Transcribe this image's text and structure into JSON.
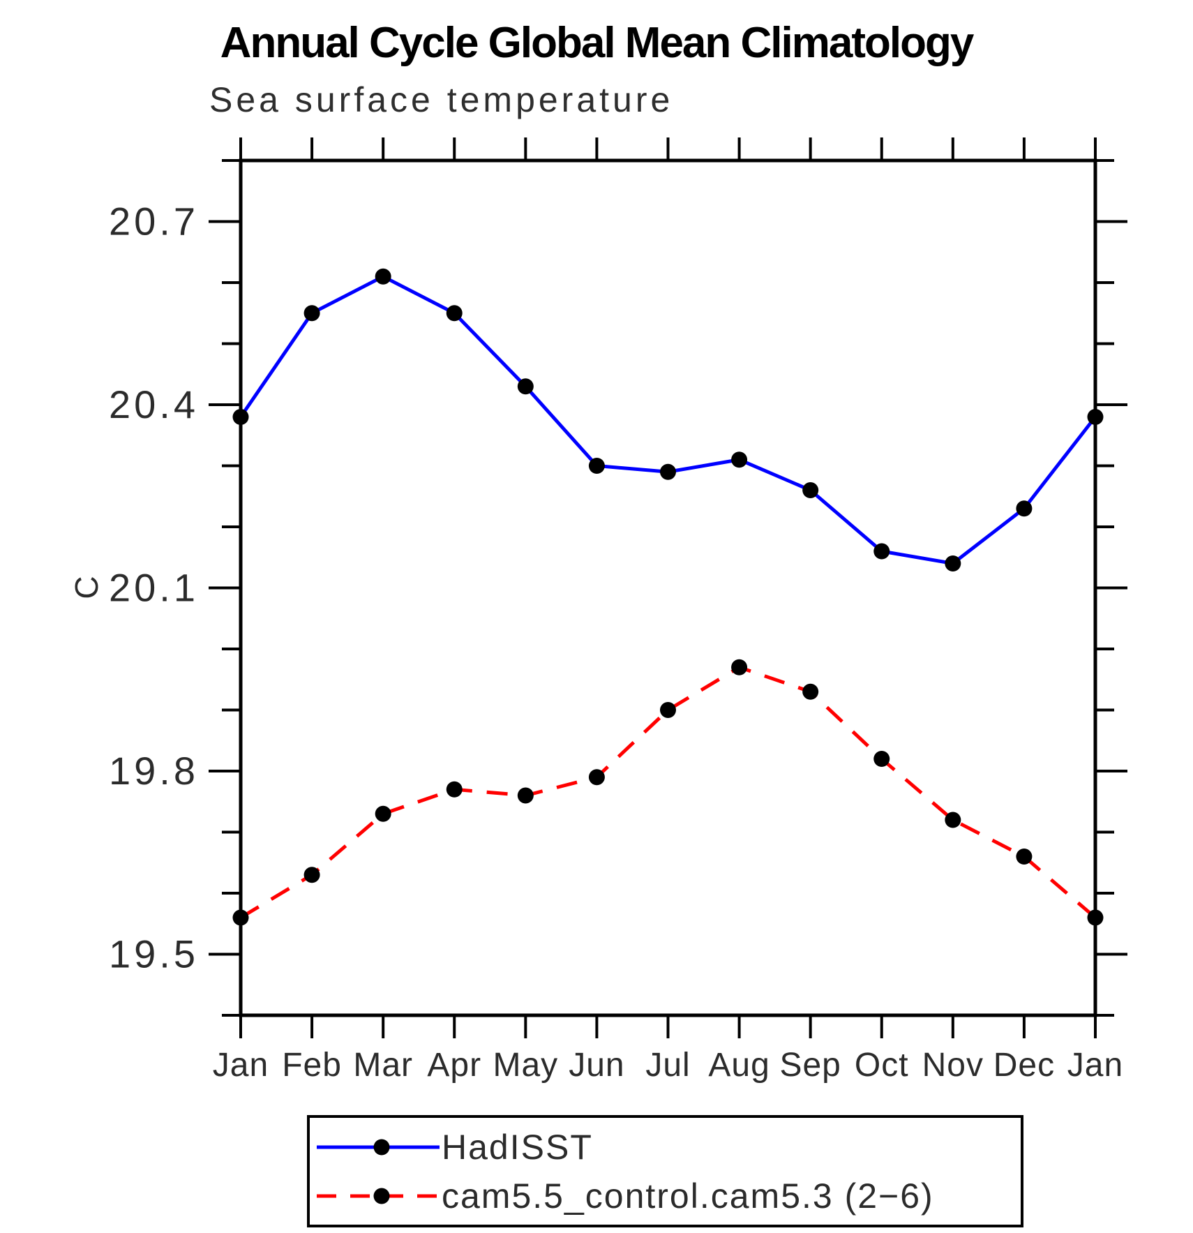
{
  "chart_data": {
    "type": "line",
    "title": "Annual Cycle Global Mean Climatology",
    "subtitle": "Sea surface temperature",
    "ylabel": "C",
    "xlabel": "",
    "categories": [
      "Jan",
      "Feb",
      "Mar",
      "Apr",
      "May",
      "Jun",
      "Jul",
      "Aug",
      "Sep",
      "Oct",
      "Nov",
      "Dec",
      "Jan"
    ],
    "ylim": [
      19.4,
      20.8
    ],
    "y_major_ticks": [
      19.5,
      19.8,
      20.1,
      20.4,
      20.7
    ],
    "y_minor_step": 0.1,
    "grid": false,
    "frame_color": "#000000",
    "legend_position": "below-plot",
    "series": [
      {
        "name": "HadISST",
        "color": "#0000ff",
        "style": "solid",
        "marker": "circle",
        "marker_color": "#000000",
        "values": [
          20.38,
          20.55,
          20.61,
          20.55,
          20.43,
          20.3,
          20.29,
          20.31,
          20.26,
          20.16,
          20.14,
          20.23,
          20.38
        ]
      },
      {
        "name": "cam5.5_control.cam5.3 (2−6)",
        "color": "#ff0000",
        "style": "dashed",
        "marker": "circle",
        "marker_color": "#000000",
        "values": [
          19.56,
          19.63,
          19.73,
          19.77,
          19.76,
          19.79,
          19.9,
          19.97,
          19.93,
          19.82,
          19.72,
          19.66,
          19.56
        ]
      }
    ]
  }
}
